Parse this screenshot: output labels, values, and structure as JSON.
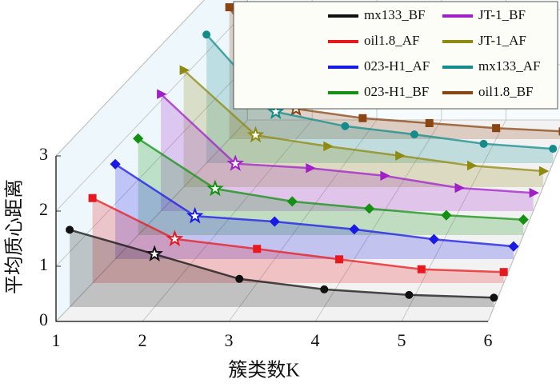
{
  "chart_data": {
    "type": "line",
    "xlabel": "簇类数K",
    "ylabel": "平均质心距离",
    "x": [
      1,
      2,
      3,
      4,
      5,
      6
    ],
    "xlim": [
      1,
      6
    ],
    "xticks": [
      1,
      2,
      3,
      4,
      5,
      6
    ],
    "ylim": [
      0,
      3
    ],
    "yticks": [
      0,
      1,
      2,
      3
    ],
    "grid": true,
    "legend": "upper right",
    "legend_columns": 2,
    "series": [
      {
        "name": "mx133_BF",
        "color": "#111111",
        "marker": "circle",
        "values": [
          1.4,
          0.96,
          0.51,
          0.32,
          0.22,
          0.17
        ]
      },
      {
        "name": "oil1.8_AF",
        "color": "#e8191e",
        "marker": "square",
        "values": [
          1.54,
          0.8,
          0.62,
          0.43,
          0.25,
          0.2
        ]
      },
      {
        "name": "023-H1_AF",
        "color": "#1a1ae6",
        "marker": "diamond",
        "values": [
          1.72,
          0.78,
          0.68,
          0.54,
          0.36,
          0.23
        ]
      },
      {
        "name": "023-H1_BF",
        "color": "#139113",
        "marker": "diamond",
        "values": [
          1.75,
          0.84,
          0.61,
          0.48,
          0.36,
          0.28
        ]
      },
      {
        "name": "JT-1_BF",
        "color": "#a020c8",
        "marker": "triangle",
        "values": [
          2.12,
          0.86,
          0.78,
          0.64,
          0.42,
          0.33
        ]
      },
      {
        "name": "JT-1_AF",
        "color": "#8f8a10",
        "marker": "triangle",
        "values": [
          2.12,
          0.94,
          0.74,
          0.57,
          0.39,
          0.29
        ]
      },
      {
        "name": "mx133_AF",
        "color": "#148c8c",
        "marker": "circle",
        "values": [
          2.33,
          0.93,
          0.67,
          0.52,
          0.35,
          0.26
        ]
      },
      {
        "name": "oil1.8_BF",
        "color": "#8b4513",
        "marker": "square",
        "values": [
          2.39,
          0.55,
          0.38,
          0.29,
          0.2,
          0.14
        ]
      }
    ]
  }
}
